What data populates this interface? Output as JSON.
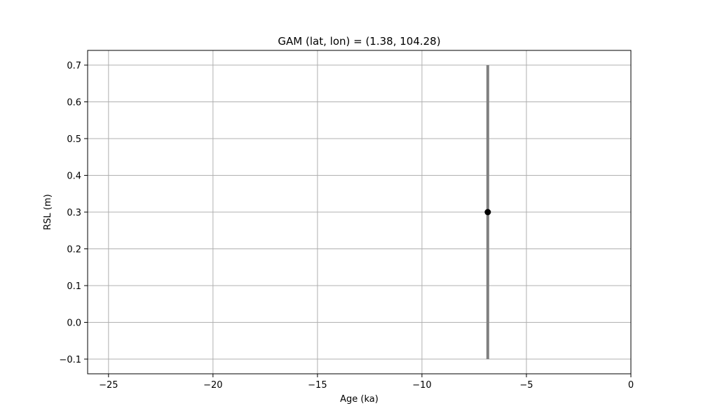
{
  "chart_data": {
    "type": "scatter",
    "title": "GAM (lat, lon) = (1.38, 104.28)",
    "xlabel": "Age (ka)",
    "ylabel": "RSL (m)",
    "xlim": [
      -26,
      0
    ],
    "ylim": [
      -0.14,
      0.74
    ],
    "xticks": [
      -25,
      -20,
      -15,
      -10,
      -5,
      0
    ],
    "xtick_labels": [
      "−25",
      "−20",
      "−15",
      "−10",
      "−5",
      "0"
    ],
    "yticks": [
      -0.1,
      0.0,
      0.1,
      0.2,
      0.3,
      0.4,
      0.5,
      0.6,
      0.7
    ],
    "ytick_labels": [
      "−0.1",
      "0.0",
      "0.1",
      "0.2",
      "0.3",
      "0.4",
      "0.5",
      "0.6",
      "0.7"
    ],
    "grid": true,
    "points": [
      {
        "x": -6.85,
        "y": 0.3,
        "y_low": -0.1,
        "y_high": 0.7
      }
    ],
    "colors": {
      "point": "#000000",
      "errorbar": "#808080",
      "grid": "#b0b0b0"
    }
  }
}
